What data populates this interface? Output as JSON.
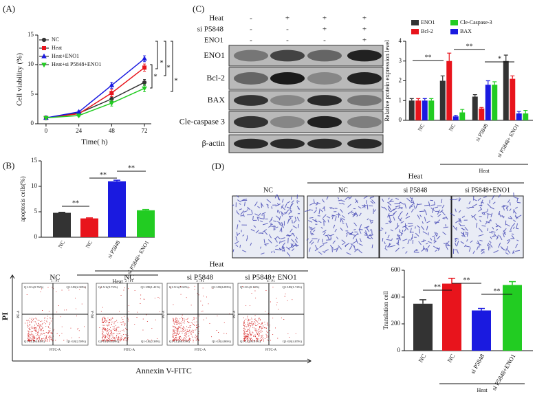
{
  "panel_labels": [
    "(A)",
    "(B)",
    "(C)",
    "(D)"
  ],
  "chart_data": [
    {
      "type": "line",
      "x_label": "Time( h)",
      "y_label": "Cell viability (%)",
      "x": [
        0,
        24,
        48,
        72
      ],
      "xlim": [
        -6,
        77
      ],
      "xticks": [
        0,
        24,
        48,
        72
      ],
      "ylim": [
        0,
        15
      ],
      "yticks": [
        0,
        5,
        10,
        15
      ],
      "series": [
        {
          "name": "NC",
          "color": "#333333",
          "values": [
            1,
            1.8,
            4.2,
            7
          ],
          "errors": [
            0.1,
            0.2,
            0.4,
            0.5
          ]
        },
        {
          "name": "Heat",
          "color": "#e8141c",
          "values": [
            1,
            1.7,
            5.2,
            9.5
          ],
          "errors": [
            0.1,
            0.2,
            0.6,
            0.6
          ]
        },
        {
          "name": "Heat+ENO1",
          "color": "#1a1ae0",
          "values": [
            1,
            2,
            6.5,
            11
          ],
          "errors": [
            0.1,
            0.2,
            0.5,
            0.5
          ]
        },
        {
          "name": "Heat+si P5848+ENO1",
          "color": "#22cc22",
          "values": [
            1,
            1.4,
            3.5,
            6
          ],
          "errors": [
            0.1,
            0.2,
            0.5,
            0.6
          ]
        }
      ],
      "annotations": [
        "*",
        "*",
        "*",
        "*"
      ]
    },
    {
      "type": "bar",
      "y_label": "apoptosis cells(%)",
      "categories": [
        "NC",
        "NC",
        "si P5848",
        "si P5848+ ENO1"
      ],
      "values": [
        4.8,
        3.7,
        11,
        5.3
      ],
      "errors": [
        0.1,
        0.1,
        0.2,
        0.15
      ],
      "colors": [
        "#333333",
        "#e8141c",
        "#1a1ae0",
        "#22cc22"
      ],
      "ylim": [
        0,
        15
      ],
      "yticks": [
        0,
        5,
        10,
        15
      ],
      "group_label": "Heat",
      "annotations": [
        "**",
        "**",
        "**"
      ]
    },
    {
      "type": "grouped_bar",
      "y_label": "Relative protein expression level",
      "categories": [
        "NC",
        "NC",
        "si P5848",
        "si P5848+ ENO1"
      ],
      "series": [
        {
          "name": "ENO1",
          "color": "#333333",
          "values": [
            1,
            2,
            1.2,
            3
          ],
          "errors": [
            0.1,
            0.25,
            0.1,
            0.3
          ]
        },
        {
          "name": "Bcl-2",
          "color": "#e8141c",
          "values": [
            1,
            3,
            0.6,
            2.1
          ],
          "errors": [
            0.1,
            0.4,
            0.05,
            0.15
          ]
        },
        {
          "name": "BAX",
          "color": "#1a1ae0",
          "values": [
            1,
            0.2,
            1.8,
            0.35
          ],
          "errors": [
            0.1,
            0.05,
            0.2,
            0.1
          ]
        },
        {
          "name": "Cle-Caspase-3",
          "color": "#22cc22",
          "values": [
            1,
            0.4,
            1.8,
            0.35
          ],
          "errors": [
            0.1,
            0.15,
            0.15,
            0.15
          ]
        }
      ],
      "ylim": [
        0,
        4
      ],
      "yticks": [
        0,
        1,
        2,
        3,
        4
      ],
      "group_label": "Heat",
      "annotations": [
        "**",
        "**",
        "*"
      ]
    },
    {
      "type": "bar",
      "y_label": "Translation cell",
      "categories": [
        "NC",
        "NC",
        "si P5848",
        "si P5848+ENO1"
      ],
      "values": [
        350,
        500,
        300,
        490
      ],
      "errors": [
        30,
        40,
        15,
        25
      ],
      "colors": [
        "#333333",
        "#e8141c",
        "#1a1ae0",
        "#22cc22"
      ],
      "ylim": [
        0,
        600
      ],
      "yticks": [
        0,
        200,
        400,
        600
      ],
      "group_label": "Heat",
      "annotations": [
        "**",
        "**",
        "**"
      ]
    }
  ],
  "blot": {
    "conditions": [
      {
        "label": "Heat",
        "signs": [
          "-",
          "+",
          "+",
          "+"
        ]
      },
      {
        "label": "si P5848",
        "signs": [
          "-",
          "-",
          "+",
          "+"
        ]
      },
      {
        "label": "ENO1",
        "signs": [
          "-",
          "-",
          "-",
          "+"
        ]
      }
    ],
    "bands": [
      "ENO1",
      "Bcl-2",
      "BAX",
      "Cle-caspase 3",
      "β-actin"
    ]
  },
  "microscopy": {
    "group_label": "Heat",
    "columns": [
      "NC",
      "NC",
      "si P5848",
      "si P5848+ENO1"
    ]
  },
  "flow": {
    "group_label": "Heat",
    "columns": [
      "NC",
      "NC",
      "si P5848",
      "si P5848+ ENO1"
    ],
    "gates": [
      "1 : P1",
      "2 : P1",
      "3 : P1",
      "4 : P1"
    ],
    "quadrants": [
      [
        "Q1-UL(0.76%)",
        "Q1-UR(2.38%)",
        "Q1-LL(94.44%)",
        "Q1-LR(2.58%)"
      ],
      [
        "Q1-UL(0.72%)",
        "Q1-UR(1.41%)",
        "Q1-LL(94.48%)",
        "Q1-LR(2.38%)"
      ],
      [
        "Q1-UL(2.02%)",
        "Q1-UR(6.89%)",
        "Q1-LL(86.33%)",
        "Q1-LR(4.86%)"
      ],
      [
        "Q1-UL(0.19%)",
        "Q1-UR(1.74%)",
        "Q1-LL(93.01%)",
        "Q1-LR(4.05%)"
      ]
    ],
    "x_axis": "FITC-A",
    "y_axis": "PE-A",
    "x_label": "Annexin V-FITC",
    "y_label": "PI"
  }
}
